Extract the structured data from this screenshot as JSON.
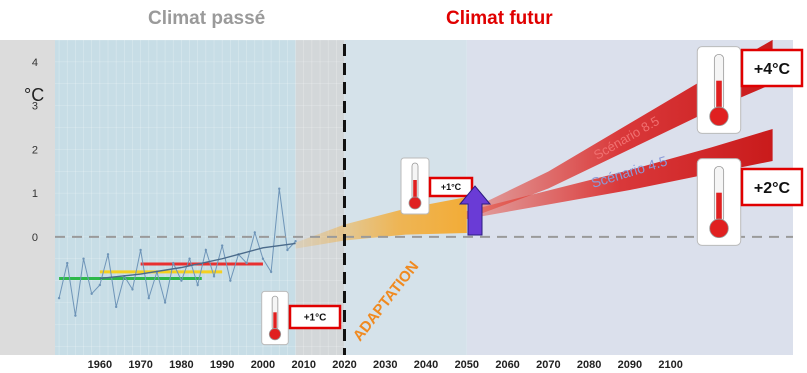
{
  "header": {
    "past": "Climat passé",
    "future": "Climat futur"
  },
  "chart_data": {
    "type": "line",
    "ylabel": "°C",
    "ylim": [
      -2.7,
      4.5
    ],
    "yticks": [
      0,
      1,
      2,
      3,
      4
    ],
    "xlim": [
      1949,
      2130
    ],
    "xticks": [
      1960,
      1970,
      1980,
      1990,
      2000,
      2010,
      2020,
      2030,
      2040,
      2050,
      2060,
      2070,
      2080,
      2090,
      2100
    ],
    "divider_year": 2020,
    "series": [
      {
        "name": "",
        "x": [
          1950,
          1952,
          1954,
          1956,
          1958,
          1960,
          1962,
          1964,
          1966,
          1968,
          1970,
          1972,
          1974,
          1976,
          1978,
          1980,
          1982,
          1984,
          1986,
          1988,
          1990,
          1992,
          1994,
          1996,
          1998,
          2000,
          2002,
          2004,
          2006,
          2008
        ],
        "y": [
          -1.4,
          -0.6,
          -1.8,
          -0.5,
          -1.3,
          -1.1,
          -0.4,
          -1.6,
          -0.9,
          -1.2,
          -0.3,
          -1.4,
          -0.8,
          -1.5,
          -0.6,
          -1.0,
          -0.5,
          -1.1,
          -0.3,
          -0.9,
          -0.2,
          -1.0,
          -0.4,
          -0.6,
          0.1,
          -0.5,
          -0.8,
          1.1,
          -0.3,
          -0.1
        ]
      },
      {
        "name": "",
        "x": [
          1960,
          1970,
          1980,
          1990,
          2000,
          2008
        ],
        "y": [
          -0.95,
          -0.85,
          -0.7,
          -0.5,
          -0.25,
          -0.15
        ]
      },
      {
        "name": "Scénario 4.5",
        "x": [
          2050,
          2070,
          2090,
          2110,
          2125
        ],
        "y": [
          0.5,
          0.9,
          1.3,
          1.75,
          2.1
        ]
      },
      {
        "name": "Scénario 8.5",
        "x": [
          2050,
          2070,
          2090,
          2110,
          2125
        ],
        "y": [
          0.5,
          1.3,
          2.3,
          3.3,
          4.0
        ]
      }
    ],
    "reference_lines": [
      {
        "x": [
          1950,
          1985
        ],
        "y": -0.95,
        "color": "#2db84a"
      },
      {
        "x": [
          1960,
          1990
        ],
        "y": -0.8,
        "color": "#f5d020"
      },
      {
        "x": [
          1970,
          2000
        ],
        "y": -0.62,
        "color": "#e83030"
      }
    ],
    "projection_band": {
      "x": [
        2008,
        2020,
        2035,
        2050
      ],
      "y": [
        -0.2,
        0.1,
        0.35,
        0.5
      ]
    },
    "annotations": {
      "past_warming": "+1°C",
      "recent_warming": "+1°C",
      "rcp85_warming": "+4°C",
      "rcp45_warming": "+2°C",
      "adaptation": "ADAPTATION"
    },
    "colors": {
      "accent_red": "#e00000",
      "scenario_red": "#d91b1b",
      "band_orange": "#f6a623",
      "arrow_purple": "#6a3bd6",
      "past_panel": "#c7dde6",
      "future_panel": "#dbe0ec"
    }
  }
}
